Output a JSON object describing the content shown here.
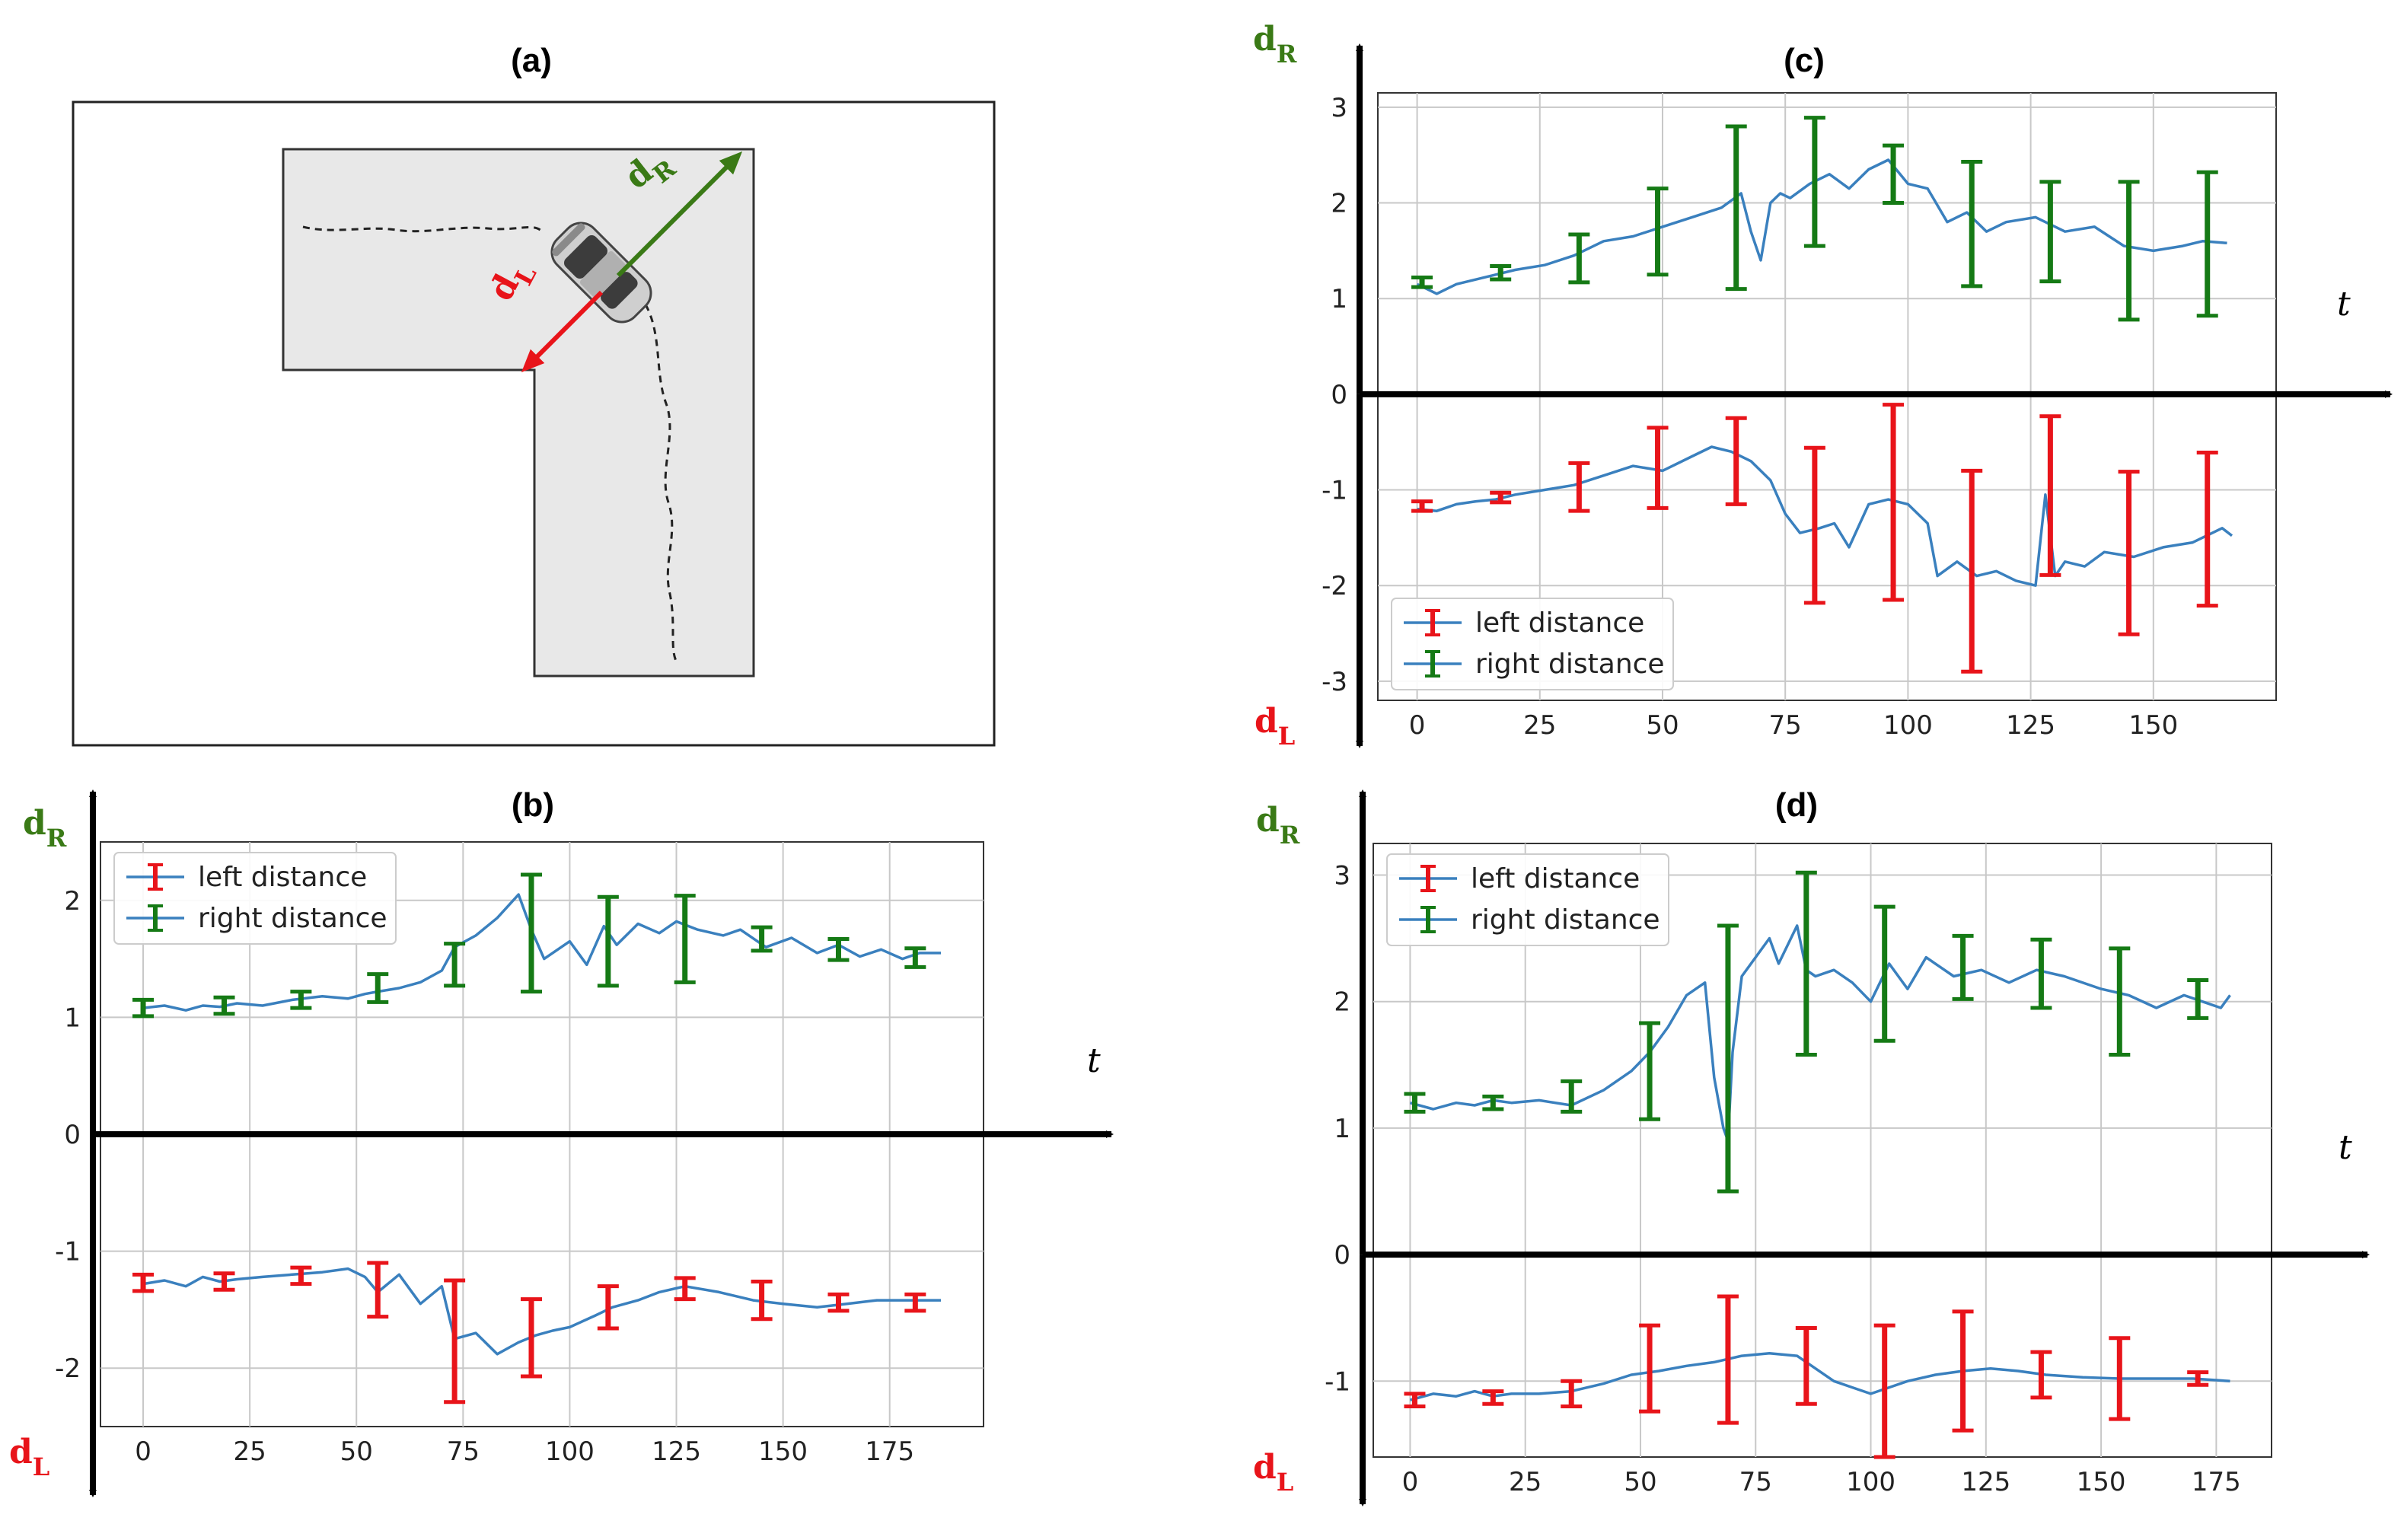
{
  "colors": {
    "line": "#3a80be",
    "left_err": "#e8141a",
    "right_err": "#157a15",
    "dL": "#e8141a",
    "dR": "#3a7a16",
    "grid": "#c8c8c8"
  },
  "panel_a": {
    "title": "(a)",
    "labels": {
      "dR": "d",
      "dR_sub": "R",
      "dL": "d",
      "dL_sub": "L"
    },
    "car_icon": "car-top-view-icon"
  },
  "chart_data": [
    {
      "id": "b",
      "type": "line",
      "title": "(b)",
      "xlabel": "t",
      "ylabel_top": "d",
      "ylabel_top_sub": "R",
      "ylabel_bottom": "d",
      "ylabel_bottom_sub": "L",
      "xlim": [
        -10,
        197
      ],
      "ylim": [
        -2.5,
        2.5
      ],
      "xticks": [
        0,
        25,
        50,
        75,
        100,
        125,
        150,
        175
      ],
      "yticks": [
        -2,
        -1,
        0,
        1,
        2
      ],
      "legend": [
        "left distance",
        "right distance"
      ],
      "legend_position": "top-left",
      "series": [
        {
          "name": "right distance",
          "x": [
            0,
            5,
            10,
            14,
            18,
            22,
            28,
            35,
            42,
            48,
            52,
            55,
            60,
            65,
            70,
            73,
            78,
            83,
            88,
            91,
            94,
            100,
            104,
            108,
            111,
            116,
            121,
            125,
            130,
            136,
            140,
            146,
            152,
            158,
            163,
            168,
            173,
            178,
            182,
            187
          ],
          "y": [
            1.08,
            1.1,
            1.06,
            1.1,
            1.09,
            1.12,
            1.1,
            1.15,
            1.18,
            1.16,
            1.2,
            1.22,
            1.25,
            1.3,
            1.4,
            1.6,
            1.7,
            1.85,
            2.05,
            1.75,
            1.5,
            1.65,
            1.45,
            1.78,
            1.62,
            1.8,
            1.72,
            1.82,
            1.75,
            1.7,
            1.75,
            1.6,
            1.68,
            1.55,
            1.62,
            1.52,
            1.58,
            1.5,
            1.55,
            1.55
          ]
        },
        {
          "name": "left distance",
          "x": [
            0,
            5,
            10,
            14,
            18,
            22,
            28,
            35,
            42,
            48,
            52,
            55,
            60,
            65,
            70,
            73,
            78,
            83,
            88,
            92,
            96,
            100,
            106,
            110,
            116,
            121,
            127,
            135,
            143,
            150,
            158,
            165,
            172,
            182,
            187
          ],
          "y": [
            -1.28,
            -1.25,
            -1.3,
            -1.22,
            -1.26,
            -1.24,
            -1.22,
            -1.2,
            -1.18,
            -1.15,
            -1.22,
            -1.35,
            -1.2,
            -1.45,
            -1.3,
            -1.75,
            -1.7,
            -1.88,
            -1.78,
            -1.72,
            -1.68,
            -1.65,
            -1.55,
            -1.48,
            -1.42,
            -1.35,
            -1.3,
            -1.35,
            -1.42,
            -1.45,
            -1.48,
            -1.45,
            -1.42,
            -1.42,
            -1.42
          ]
        }
      ],
      "errorbars": [
        {
          "series": "right distance",
          "x": [
            0,
            19,
            37,
            55,
            73,
            91,
            109,
            127,
            145,
            163,
            181
          ],
          "center": [
            1.08,
            1.1,
            1.15,
            1.25,
            1.45,
            1.72,
            1.65,
            1.67,
            1.67,
            1.58,
            1.51
          ],
          "err": [
            0.07,
            0.07,
            0.07,
            0.12,
            0.18,
            0.5,
            0.38,
            0.37,
            0.1,
            0.09,
            0.08
          ]
        },
        {
          "series": "left distance",
          "x": [
            0,
            19,
            37,
            55,
            73,
            91,
            109,
            127,
            145,
            163,
            181
          ],
          "center": [
            -1.27,
            -1.26,
            -1.21,
            -1.33,
            -1.77,
            -1.74,
            -1.48,
            -1.32,
            -1.42,
            -1.44,
            -1.44
          ],
          "err": [
            0.07,
            0.07,
            0.07,
            0.23,
            0.52,
            0.33,
            0.18,
            0.09,
            0.16,
            0.07,
            0.07
          ]
        }
      ]
    },
    {
      "id": "c",
      "type": "line",
      "title": "(c)",
      "xlabel": "t",
      "ylabel_top": "d",
      "ylabel_top_sub": "R",
      "ylabel_bottom": "d",
      "ylabel_bottom_sub": "L",
      "xlim": [
        -8,
        175
      ],
      "ylim": [
        -3.2,
        3.15
      ],
      "xticks": [
        0,
        25,
        50,
        75,
        100,
        125,
        150
      ],
      "yticks": [
        -3,
        -2,
        -1,
        0,
        1,
        2,
        3
      ],
      "legend": [
        "left distance",
        "right distance"
      ],
      "legend_position": "bottom-left",
      "series": [
        {
          "name": "right distance",
          "x": [
            0,
            4,
            8,
            12,
            16,
            20,
            26,
            32,
            38,
            44,
            50,
            56,
            62,
            66,
            68,
            70,
            72,
            74,
            76,
            80,
            84,
            88,
            92,
            96,
            100,
            104,
            108,
            112,
            116,
            120,
            126,
            132,
            138,
            144,
            150,
            156,
            160,
            165
          ],
          "y": [
            1.15,
            1.05,
            1.15,
            1.2,
            1.25,
            1.3,
            1.35,
            1.45,
            1.6,
            1.65,
            1.75,
            1.85,
            1.95,
            2.1,
            1.7,
            1.4,
            2.0,
            2.1,
            2.05,
            2.2,
            2.3,
            2.15,
            2.35,
            2.45,
            2.2,
            2.15,
            1.8,
            1.9,
            1.7,
            1.8,
            1.85,
            1.7,
            1.75,
            1.55,
            1.5,
            1.55,
            1.6,
            1.58
          ]
        },
        {
          "name": "left distance",
          "x": [
            0,
            4,
            8,
            12,
            16,
            20,
            26,
            32,
            38,
            44,
            50,
            56,
            60,
            64,
            68,
            72,
            75,
            78,
            82,
            85,
            88,
            92,
            96,
            100,
            104,
            106,
            110,
            114,
            118,
            122,
            126,
            128,
            130,
            132,
            136,
            140,
            146,
            152,
            158,
            164,
            166
          ],
          "y": [
            -1.2,
            -1.22,
            -1.15,
            -1.12,
            -1.1,
            -1.05,
            -1.0,
            -0.95,
            -0.85,
            -0.75,
            -0.8,
            -0.65,
            -0.55,
            -0.6,
            -0.7,
            -0.9,
            -1.25,
            -1.45,
            -1.4,
            -1.35,
            -1.6,
            -1.15,
            -1.1,
            -1.15,
            -1.35,
            -1.9,
            -1.75,
            -1.9,
            -1.85,
            -1.95,
            -2.0,
            -1.05,
            -1.9,
            -1.75,
            -1.8,
            -1.65,
            -1.7,
            -1.6,
            -1.55,
            -1.4,
            -1.48
          ]
        }
      ],
      "errorbars": [
        {
          "series": "right distance",
          "x": [
            1,
            17,
            33,
            49,
            65,
            81,
            97,
            113,
            129,
            145,
            161
          ],
          "center": [
            1.17,
            1.27,
            1.42,
            1.7,
            1.95,
            2.22,
            2.3,
            1.78,
            1.7,
            1.5,
            1.57
          ],
          "err": [
            0.05,
            0.07,
            0.25,
            0.45,
            0.85,
            0.67,
            0.3,
            0.65,
            0.52,
            0.72,
            0.75
          ]
        },
        {
          "series": "left distance",
          "x": [
            1,
            17,
            33,
            49,
            65,
            81,
            97,
            113,
            129,
            145,
            161
          ],
          "center": [
            -1.17,
            -1.08,
            -0.97,
            -0.77,
            -0.7,
            -1.37,
            -1.13,
            -1.85,
            -1.06,
            -1.66,
            -1.41
          ],
          "err": [
            0.05,
            0.05,
            0.25,
            0.42,
            0.45,
            0.81,
            1.02,
            1.05,
            0.83,
            0.85,
            0.8
          ]
        }
      ]
    },
    {
      "id": "d",
      "type": "line",
      "title": "(d)",
      "xlabel": "t",
      "ylabel_top": "d",
      "ylabel_top_sub": "R",
      "ylabel_bottom": "d",
      "ylabel_bottom_sub": "L",
      "xlim": [
        -8,
        187
      ],
      "ylim": [
        -1.6,
        3.25
      ],
      "xticks": [
        0,
        25,
        50,
        75,
        100,
        125,
        150,
        175
      ],
      "yticks": [
        -1,
        0,
        1,
        2,
        3
      ],
      "legend": [
        "left distance",
        "right distance"
      ],
      "legend_position": "top-left",
      "series": [
        {
          "name": "right distance",
          "x": [
            0,
            5,
            10,
            14,
            18,
            22,
            28,
            35,
            42,
            48,
            52,
            56,
            60,
            64,
            66,
            68,
            69,
            70,
            72,
            74,
            78,
            80,
            84,
            86,
            88,
            92,
            96,
            100,
            104,
            108,
            112,
            118,
            124,
            130,
            136,
            142,
            150,
            156,
            162,
            168,
            172,
            176,
            178
          ],
          "y": [
            1.2,
            1.15,
            1.2,
            1.18,
            1.22,
            1.2,
            1.22,
            1.18,
            1.3,
            1.45,
            1.6,
            1.8,
            2.05,
            2.15,
            1.4,
            1.0,
            0.9,
            1.6,
            2.2,
            2.3,
            2.5,
            2.3,
            2.6,
            2.25,
            2.2,
            2.25,
            2.15,
            2.0,
            2.3,
            2.1,
            2.35,
            2.2,
            2.25,
            2.15,
            2.25,
            2.2,
            2.1,
            2.05,
            1.95,
            2.05,
            2.0,
            1.95,
            2.05
          ]
        },
        {
          "name": "left distance",
          "x": [
            0,
            5,
            10,
            14,
            18,
            22,
            28,
            35,
            42,
            48,
            54,
            60,
            66,
            72,
            78,
            84,
            88,
            92,
            96,
            100,
            104,
            108,
            114,
            120,
            126,
            132,
            138,
            146,
            154,
            162,
            170,
            178
          ],
          "y": [
            -1.15,
            -1.1,
            -1.12,
            -1.08,
            -1.12,
            -1.1,
            -1.1,
            -1.08,
            -1.02,
            -0.95,
            -0.92,
            -0.88,
            -0.85,
            -0.8,
            -0.78,
            -0.8,
            -0.9,
            -1.0,
            -1.05,
            -1.1,
            -1.05,
            -1.0,
            -0.95,
            -0.92,
            -0.9,
            -0.92,
            -0.95,
            -0.97,
            -0.98,
            -0.98,
            -0.98,
            -1.0
          ]
        }
      ],
      "errorbars": [
        {
          "series": "right distance",
          "x": [
            1,
            18,
            35,
            52,
            69,
            86,
            103,
            120,
            137,
            154,
            171
          ],
          "center": [
            1.2,
            1.2,
            1.25,
            1.45,
            1.55,
            2.3,
            2.22,
            2.27,
            2.22,
            2.0,
            2.02
          ],
          "err": [
            0.07,
            0.05,
            0.12,
            0.38,
            1.05,
            0.72,
            0.53,
            0.25,
            0.27,
            0.42,
            0.15
          ]
        },
        {
          "series": "left distance",
          "x": [
            1,
            18,
            35,
            52,
            69,
            86,
            103,
            120,
            137,
            154,
            171
          ],
          "center": [
            -1.15,
            -1.13,
            -1.1,
            -0.9,
            -0.83,
            -0.88,
            -1.08,
            -0.92,
            -0.95,
            -0.98,
            -0.98
          ],
          "err": [
            0.05,
            0.05,
            0.1,
            0.34,
            0.5,
            0.3,
            0.52,
            0.47,
            0.18,
            0.32,
            0.05
          ]
        }
      ]
    }
  ]
}
